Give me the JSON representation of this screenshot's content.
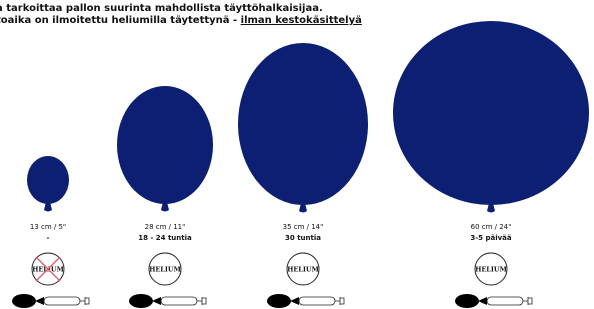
{
  "header": {
    "line1": "a tarkoittaa pallon suurinta mahdollista täyttöhalkaisijaa.",
    "line2": "toaika on ilmoitettu heliumilla täytettynä - ",
    "line2_link": "ilman kestokäsittelyä"
  },
  "balloons": [
    {
      "size": "13 cm / 5\"",
      "duration": "-",
      "badge": "HELIUM"
    },
    {
      "size": "28 cm / 11\"",
      "duration": "18 - 24 tuntia",
      "badge": "HELIUM"
    },
    {
      "size": "35 cm / 14\"",
      "duration": "30 tuntia",
      "badge": "HELIUM"
    },
    {
      "size": "60 cm / 24\"",
      "duration": "3-5 päivää",
      "badge": "HELIUM"
    }
  ]
}
